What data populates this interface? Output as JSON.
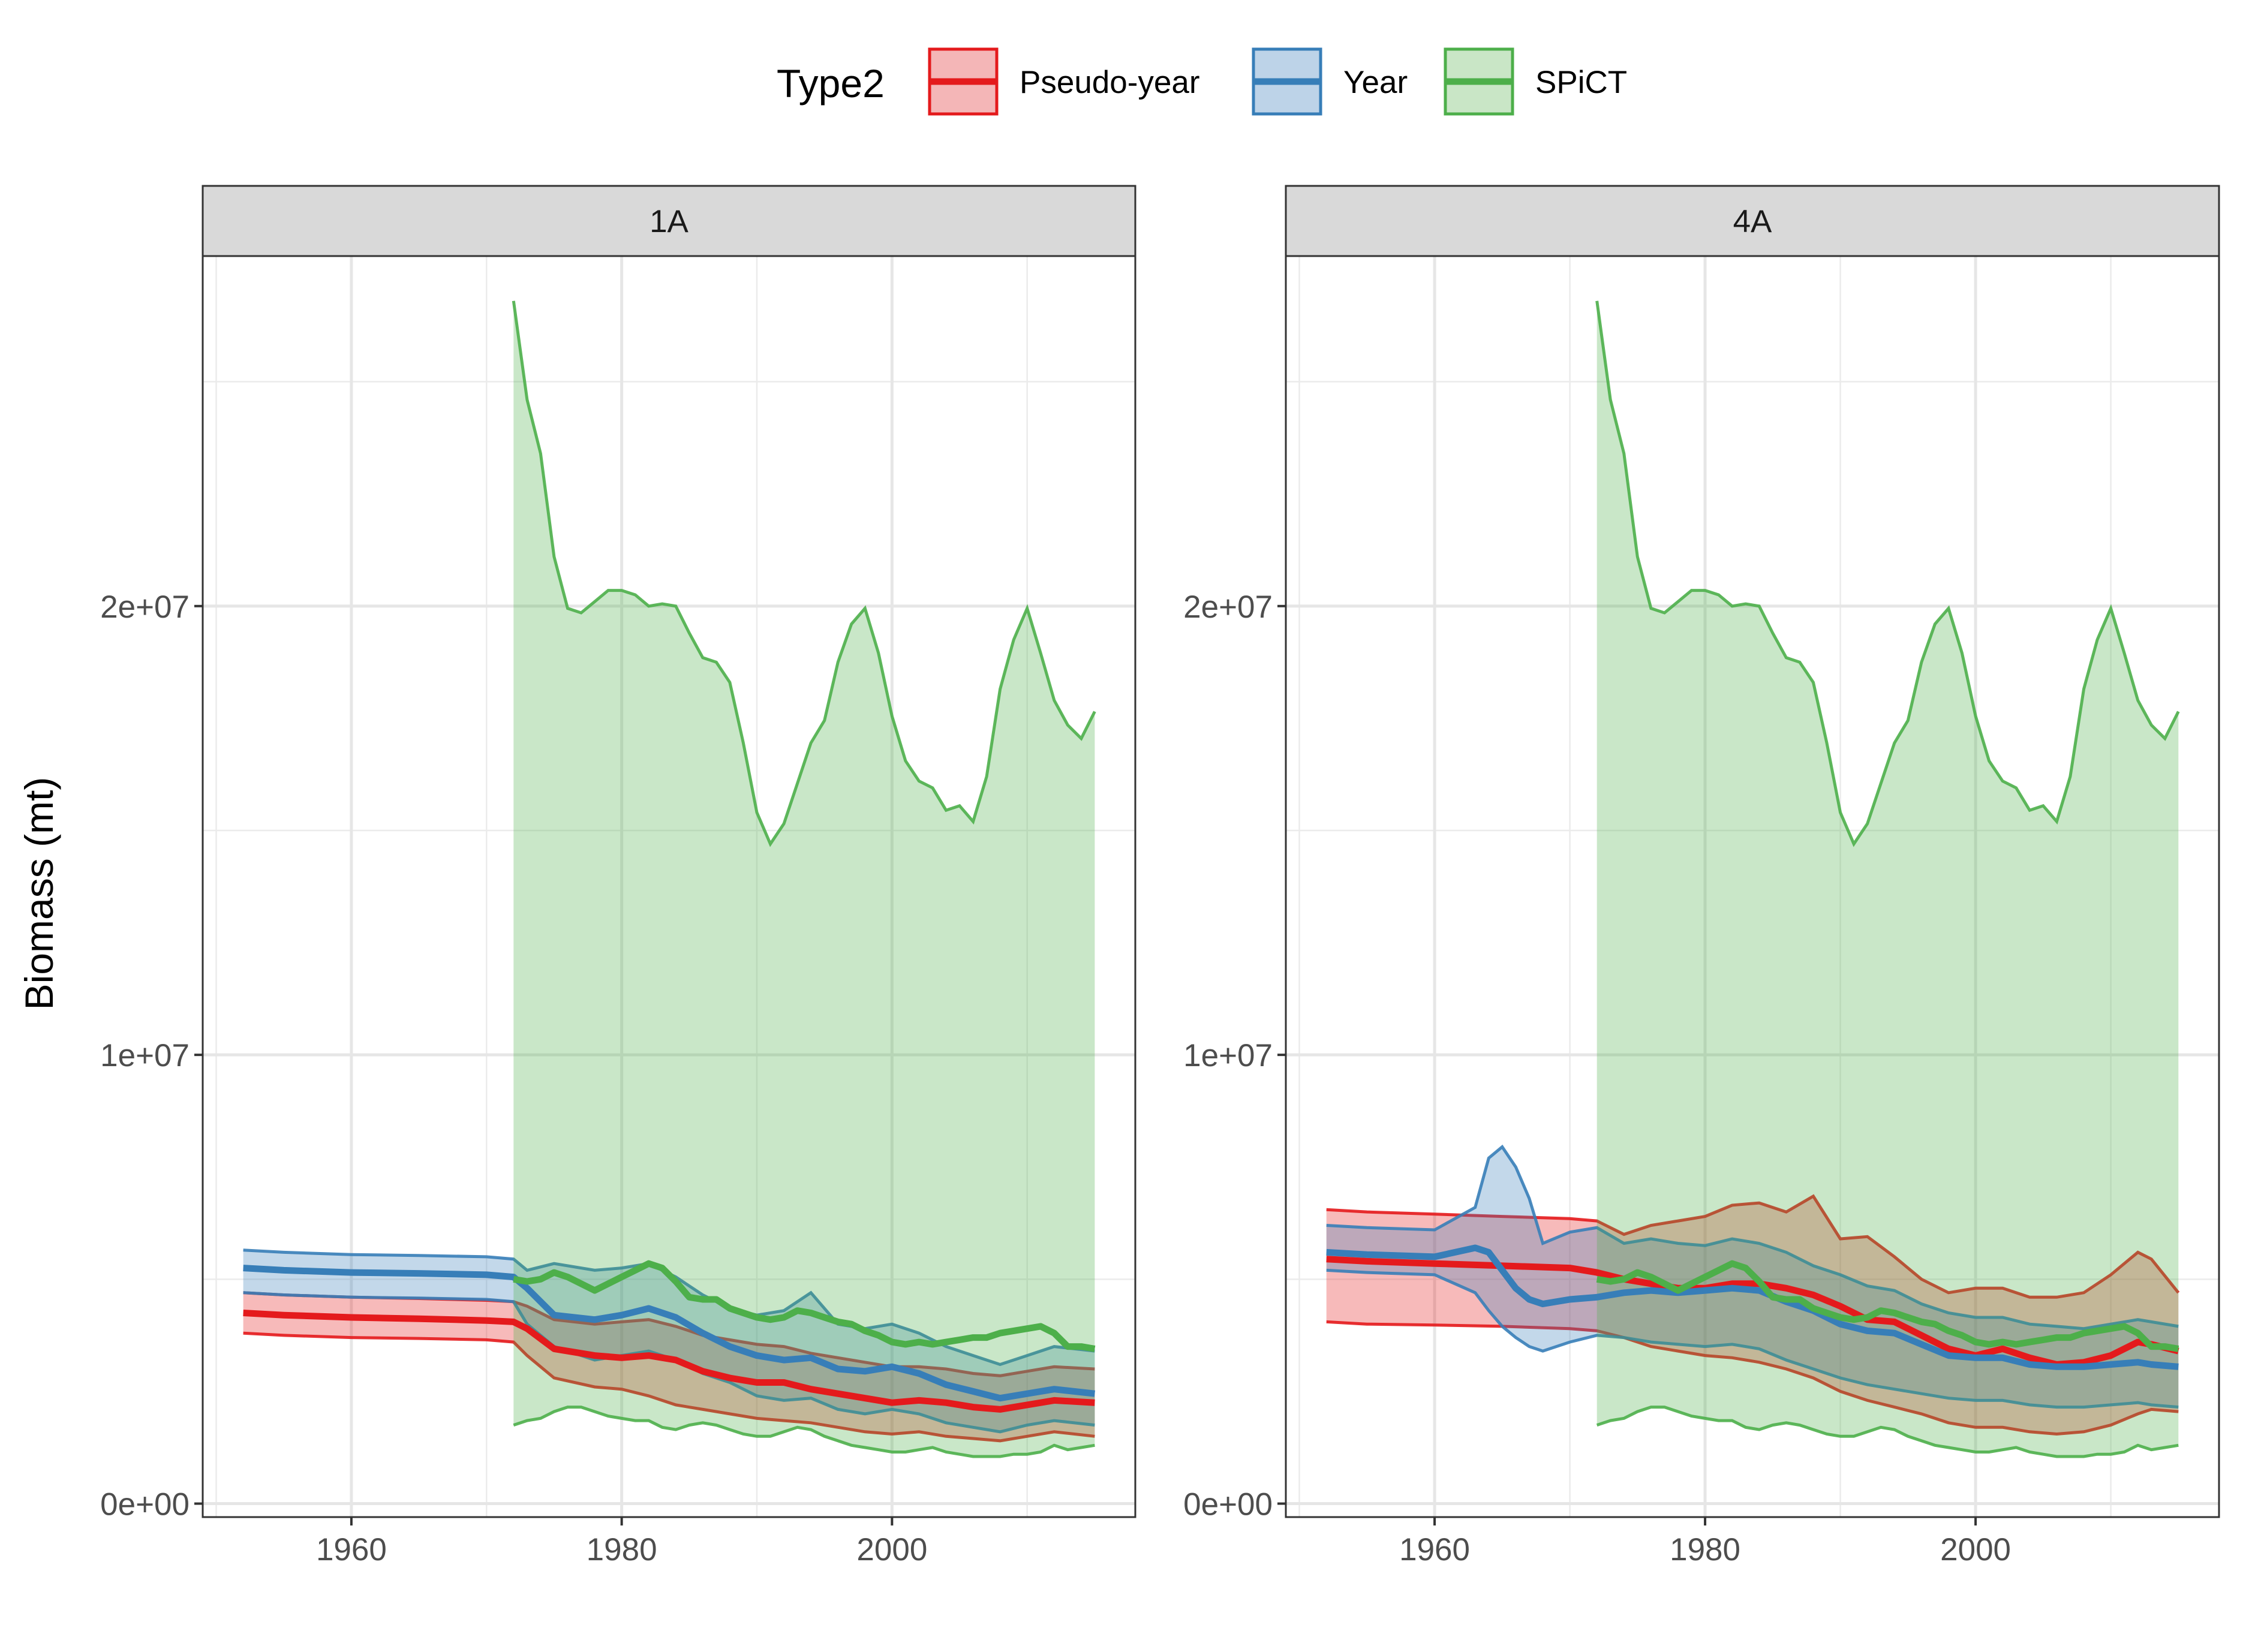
{
  "legend": {
    "title": "Type2",
    "entries": [
      {
        "label": "Pseudo-year",
        "color": "#E41A1C",
        "fill": "#F4B6B7"
      },
      {
        "label": "Year",
        "color": "#377EB8",
        "fill": "#BDD3E8"
      },
      {
        "label": "SPiCT",
        "color": "#4DAF4A",
        "fill": "#C9E6C6"
      }
    ]
  },
  "y_axis_title": "Biomass (mt)",
  "chart_data": [
    {
      "type": "area",
      "panel": "1A",
      "x_ticks": [
        1960,
        1980,
        2000
      ],
      "y_ticks": [
        {
          "value": 0,
          "label": "0e+00"
        },
        {
          "value": 10000000,
          "label": "1e+07"
        },
        {
          "value": 20000000,
          "label": "2e+07"
        }
      ],
      "xlim": [
        1949,
        2018
      ],
      "ylim": [
        -300000,
        27800000
      ],
      "grid": true,
      "legend_position": "top",
      "series": [
        {
          "name": "Pseudo-year",
          "x": [
            1952,
            1955,
            1960,
            1965,
            1970,
            1972,
            1973,
            1975,
            1978,
            1980,
            1982,
            1984,
            1986,
            1988,
            1990,
            1992,
            1994,
            1996,
            1998,
            2000,
            2002,
            2004,
            2006,
            2008,
            2010,
            2012,
            2015
          ],
          "mean": [
            4250000,
            4200000,
            4150000,
            4120000,
            4080000,
            4050000,
            3900000,
            3450000,
            3300000,
            3250000,
            3300000,
            3200000,
            2950000,
            2800000,
            2700000,
            2700000,
            2550000,
            2450000,
            2350000,
            2250000,
            2300000,
            2250000,
            2150000,
            2100000,
            2200000,
            2300000,
            2250000
          ],
          "lower": [
            3800000,
            3750000,
            3700000,
            3680000,
            3650000,
            3600000,
            3300000,
            2800000,
            2600000,
            2550000,
            2400000,
            2200000,
            2100000,
            2000000,
            1900000,
            1850000,
            1800000,
            1700000,
            1600000,
            1550000,
            1600000,
            1500000,
            1450000,
            1400000,
            1500000,
            1600000,
            1500000
          ],
          "upper": [
            4700000,
            4650000,
            4600000,
            4570000,
            4530000,
            4500000,
            4400000,
            4100000,
            4000000,
            4050000,
            4100000,
            3950000,
            3750000,
            3650000,
            3550000,
            3500000,
            3350000,
            3250000,
            3150000,
            3050000,
            3050000,
            3000000,
            2900000,
            2850000,
            2950000,
            3050000,
            3000000
          ]
        },
        {
          "name": "Year",
          "x": [
            1952,
            1955,
            1960,
            1965,
            1970,
            1972,
            1973,
            1975,
            1978,
            1980,
            1982,
            1984,
            1986,
            1988,
            1990,
            1992,
            1994,
            1996,
            1998,
            2000,
            2002,
            2004,
            2006,
            2008,
            2010,
            2012,
            2015
          ],
          "mean": [
            5250000,
            5200000,
            5150000,
            5130000,
            5100000,
            5050000,
            4800000,
            4200000,
            4100000,
            4200000,
            4350000,
            4150000,
            3800000,
            3500000,
            3300000,
            3200000,
            3250000,
            3000000,
            2950000,
            3050000,
            2900000,
            2650000,
            2500000,
            2350000,
            2450000,
            2550000,
            2450000
          ],
          "lower": [
            4700000,
            4650000,
            4600000,
            4580000,
            4550000,
            4500000,
            4000000,
            3500000,
            3200000,
            3300000,
            3400000,
            3200000,
            2900000,
            2700000,
            2400000,
            2300000,
            2350000,
            2100000,
            2000000,
            2100000,
            2000000,
            1800000,
            1700000,
            1600000,
            1750000,
            1850000,
            1750000
          ],
          "upper": [
            5650000,
            5600000,
            5550000,
            5530000,
            5500000,
            5450000,
            5200000,
            5350000,
            5200000,
            5250000,
            5350000,
            5050000,
            4650000,
            4350000,
            4200000,
            4300000,
            4700000,
            4000000,
            3900000,
            4000000,
            3800000,
            3500000,
            3300000,
            3100000,
            3300000,
            3500000,
            3400000
          ]
        },
        {
          "name": "SPiCT",
          "x": [
            1972,
            1973,
            1974,
            1975,
            1976,
            1977,
            1978,
            1979,
            1980,
            1981,
            1982,
            1983,
            1984,
            1985,
            1986,
            1987,
            1988,
            1989,
            1990,
            1991,
            1992,
            1993,
            1994,
            1995,
            1996,
            1997,
            1998,
            1999,
            2000,
            2001,
            2002,
            2003,
            2004,
            2005,
            2006,
            2007,
            2008,
            2009,
            2010,
            2011,
            2012,
            2013,
            2014,
            2015
          ],
          "mean": [
            5000000,
            4950000,
            5000000,
            5150000,
            5050000,
            4900000,
            4750000,
            4900000,
            5050000,
            5200000,
            5350000,
            5250000,
            4950000,
            4600000,
            4550000,
            4550000,
            4350000,
            4250000,
            4150000,
            4100000,
            4150000,
            4300000,
            4250000,
            4150000,
            4050000,
            4000000,
            3850000,
            3750000,
            3600000,
            3550000,
            3600000,
            3550000,
            3600000,
            3650000,
            3700000,
            3700000,
            3800000,
            3850000,
            3900000,
            3950000,
            3800000,
            3500000,
            3500000,
            3450000
          ],
          "lower": [
            1750000,
            1850000,
            1900000,
            2050000,
            2150000,
            2150000,
            2050000,
            1950000,
            1900000,
            1850000,
            1850000,
            1700000,
            1650000,
            1750000,
            1800000,
            1750000,
            1650000,
            1550000,
            1500000,
            1500000,
            1600000,
            1700000,
            1650000,
            1500000,
            1400000,
            1300000,
            1250000,
            1200000,
            1150000,
            1150000,
            1200000,
            1250000,
            1150000,
            1100000,
            1050000,
            1050000,
            1050000,
            1100000,
            1100000,
            1150000,
            1300000,
            1200000,
            1250000,
            1300000
          ],
          "upper": [
            26800000,
            24600000,
            23400000,
            21100000,
            19950000,
            19850000,
            20100000,
            20350000,
            20350000,
            20250000,
            20000000,
            20050000,
            20000000,
            19400000,
            18850000,
            18750000,
            18300000,
            16950000,
            15400000,
            14700000,
            15150000,
            16050000,
            16950000,
            17450000,
            18750000,
            19600000,
            19950000,
            18950000,
            17550000,
            16550000,
            16100000,
            15950000,
            15450000,
            15550000,
            15200000,
            16200000,
            18150000,
            19250000,
            19950000,
            18950000,
            17900000,
            17350000,
            17050000,
            17650000
          ]
        }
      ]
    },
    {
      "type": "area",
      "panel": "4A",
      "x_ticks": [
        1960,
        1980,
        2000
      ],
      "y_ticks": [
        {
          "value": 0,
          "label": "0e+00"
        },
        {
          "value": 10000000,
          "label": "1e+07"
        },
        {
          "value": 20000000,
          "label": "2e+07"
        }
      ],
      "xlim": [
        1949,
        2018
      ],
      "ylim": [
        -300000,
        27800000
      ],
      "grid": true,
      "legend_position": "top",
      "series": [
        {
          "name": "Pseudo-year",
          "x": [
            1952,
            1955,
            1960,
            1965,
            1970,
            1972,
            1974,
            1976,
            1978,
            1980,
            1982,
            1984,
            1986,
            1988,
            1990,
            1992,
            1994,
            1996,
            1998,
            2000,
            2002,
            2004,
            2006,
            2008,
            2010,
            2012,
            2013,
            2015
          ],
          "mean": [
            5450000,
            5400000,
            5350000,
            5300000,
            5250000,
            5150000,
            5000000,
            4900000,
            4800000,
            4800000,
            4900000,
            4900000,
            4800000,
            4650000,
            4400000,
            4100000,
            4050000,
            3750000,
            3450000,
            3300000,
            3450000,
            3250000,
            3100000,
            3150000,
            3300000,
            3600000,
            3550000,
            3400000
          ],
          "lower": [
            4050000,
            4000000,
            3980000,
            3950000,
            3900000,
            3850000,
            3700000,
            3500000,
            3400000,
            3300000,
            3250000,
            3150000,
            3000000,
            2800000,
            2500000,
            2300000,
            2150000,
            2000000,
            1800000,
            1700000,
            1700000,
            1600000,
            1550000,
            1600000,
            1750000,
            2000000,
            2100000,
            2050000
          ],
          "upper": [
            6550000,
            6500000,
            6450000,
            6400000,
            6350000,
            6300000,
            6000000,
            6200000,
            6300000,
            6400000,
            6650000,
            6700000,
            6500000,
            6850000,
            5900000,
            5950000,
            5500000,
            5000000,
            4700000,
            4800000,
            4800000,
            4600000,
            4600000,
            4700000,
            5100000,
            5600000,
            5450000,
            4700000
          ]
        },
        {
          "name": "Year",
          "x": [
            1952,
            1955,
            1960,
            1963,
            1964,
            1965,
            1966,
            1967,
            1968,
            1970,
            1972,
            1974,
            1976,
            1978,
            1980,
            1982,
            1984,
            1986,
            1988,
            1990,
            1992,
            1994,
            1996,
            1998,
            2000,
            2002,
            2004,
            2006,
            2008,
            2010,
            2012,
            2013,
            2015
          ],
          "mean": [
            5600000,
            5550000,
            5500000,
            5700000,
            5600000,
            5200000,
            4800000,
            4550000,
            4450000,
            4550000,
            4600000,
            4700000,
            4750000,
            4700000,
            4750000,
            4800000,
            4750000,
            4500000,
            4300000,
            4000000,
            3850000,
            3800000,
            3550000,
            3300000,
            3250000,
            3250000,
            3100000,
            3050000,
            3050000,
            3100000,
            3150000,
            3100000,
            3050000
          ],
          "lower": [
            5200000,
            5150000,
            5100000,
            4700000,
            4300000,
            3950000,
            3700000,
            3500000,
            3400000,
            3600000,
            3750000,
            3700000,
            3600000,
            3550000,
            3500000,
            3550000,
            3450000,
            3200000,
            3000000,
            2800000,
            2650000,
            2550000,
            2450000,
            2350000,
            2300000,
            2300000,
            2200000,
            2150000,
            2150000,
            2200000,
            2250000,
            2200000,
            2150000
          ],
          "upper": [
            6200000,
            6150000,
            6100000,
            6600000,
            7700000,
            7950000,
            7500000,
            6800000,
            5800000,
            6050000,
            6150000,
            5800000,
            5900000,
            5800000,
            5750000,
            5900000,
            5800000,
            5600000,
            5300000,
            5100000,
            4850000,
            4750000,
            4450000,
            4250000,
            4150000,
            4150000,
            4000000,
            3950000,
            3900000,
            4000000,
            4100000,
            4050000,
            3950000
          ]
        },
        {
          "name": "SPiCT",
          "x": [
            1972,
            1973,
            1974,
            1975,
            1976,
            1977,
            1978,
            1979,
            1980,
            1981,
            1982,
            1983,
            1984,
            1985,
            1986,
            1987,
            1988,
            1989,
            1990,
            1991,
            1992,
            1993,
            1994,
            1995,
            1996,
            1997,
            1998,
            1999,
            2000,
            2001,
            2002,
            2003,
            2004,
            2005,
            2006,
            2007,
            2008,
            2009,
            2010,
            2011,
            2012,
            2013,
            2014,
            2015
          ],
          "mean": [
            5000000,
            4950000,
            5000000,
            5150000,
            5050000,
            4900000,
            4750000,
            4900000,
            5050000,
            5200000,
            5350000,
            5250000,
            4950000,
            4600000,
            4550000,
            4550000,
            4350000,
            4250000,
            4150000,
            4100000,
            4150000,
            4300000,
            4250000,
            4150000,
            4050000,
            4000000,
            3850000,
            3750000,
            3600000,
            3550000,
            3600000,
            3550000,
            3600000,
            3650000,
            3700000,
            3700000,
            3800000,
            3850000,
            3900000,
            3950000,
            3800000,
            3500000,
            3500000,
            3450000
          ],
          "lower": [
            1750000,
            1850000,
            1900000,
            2050000,
            2150000,
            2150000,
            2050000,
            1950000,
            1900000,
            1850000,
            1850000,
            1700000,
            1650000,
            1750000,
            1800000,
            1750000,
            1650000,
            1550000,
            1500000,
            1500000,
            1600000,
            1700000,
            1650000,
            1500000,
            1400000,
            1300000,
            1250000,
            1200000,
            1150000,
            1150000,
            1200000,
            1250000,
            1150000,
            1100000,
            1050000,
            1050000,
            1050000,
            1100000,
            1100000,
            1150000,
            1300000,
            1200000,
            1250000,
            1300000
          ],
          "upper": [
            26800000,
            24600000,
            23400000,
            21100000,
            19950000,
            19850000,
            20100000,
            20350000,
            20350000,
            20250000,
            20000000,
            20050000,
            20000000,
            19400000,
            18850000,
            18750000,
            18300000,
            16950000,
            15400000,
            14700000,
            15150000,
            16050000,
            16950000,
            17450000,
            18750000,
            19600000,
            19950000,
            18950000,
            17550000,
            16550000,
            16100000,
            15950000,
            15450000,
            15550000,
            15200000,
            16200000,
            18150000,
            19250000,
            19950000,
            18950000,
            17900000,
            17350000,
            17050000,
            17650000
          ]
        }
      ]
    }
  ]
}
